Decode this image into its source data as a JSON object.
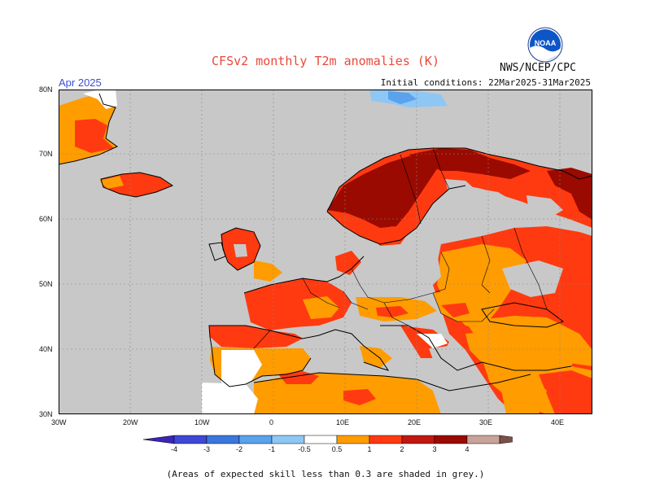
{
  "title": "CFSv2 monthly T2m anomalies (K)",
  "agency": "NWS/NCEP/CPC",
  "logo_text": "NOAA",
  "month": "Apr 2025",
  "initial_conditions": "Initial conditions: 22Mar2025-31Mar2025",
  "lat_labels": [
    "80N",
    "70N",
    "60N",
    "50N",
    "40N",
    "30N"
  ],
  "lon_labels": [
    "30W",
    "20W",
    "10W",
    "0",
    "10E",
    "20E",
    "30E",
    "40E"
  ],
  "colorbar_labels": [
    "-4",
    "-3",
    "-2",
    "-1",
    "-0.5",
    "0.5",
    "1",
    "2",
    "3",
    "4"
  ],
  "colorbar_colors": [
    "#3b24b8",
    "#3f47d6",
    "#3b77dc",
    "#5aa2ec",
    "#8ec7f4",
    "#ffffff",
    "#ff9c00",
    "#ff3a10",
    "#c0180f",
    "#9a0a00",
    "#c9a39a",
    "#7a5048"
  ],
  "footnote": "(Areas of expected skill less than 0.3 are shaded in grey.)",
  "colors": {
    "land_grey": "#c8c8c8",
    "ocean_grey": "#c8c8c8"
  }
}
